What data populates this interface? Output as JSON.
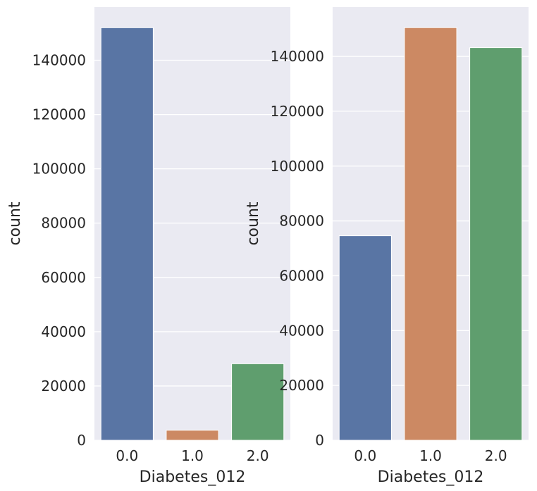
{
  "chart_data": [
    {
      "type": "bar",
      "categories": [
        "0.0",
        "1.0",
        "2.0"
      ],
      "values": [
        152000,
        3700,
        28200
      ],
      "colors": [
        "#5975a4",
        "#cc8963",
        "#5f9e6e"
      ],
      "xlabel": "Diabetes_012",
      "ylabel": "count",
      "ylim": [
        0,
        159600
      ],
      "yticks": [
        0,
        20000,
        40000,
        60000,
        80000,
        100000,
        120000,
        140000
      ],
      "ytick_labels": [
        "0",
        "20000",
        "40000",
        "60000",
        "80000",
        "100000",
        "120000",
        "140000"
      ],
      "grid": true,
      "background": "#eaeaf2"
    },
    {
      "type": "bar",
      "categories": [
        "0.0",
        "1.0",
        "2.0"
      ],
      "values": [
        74600,
        150500,
        143200
      ],
      "colors": [
        "#5975a4",
        "#cc8963",
        "#5f9e6e"
      ],
      "xlabel": "Diabetes_012",
      "ylabel": "count",
      "ylim": [
        0,
        158000
      ],
      "yticks": [
        0,
        20000,
        40000,
        60000,
        80000,
        100000,
        120000,
        140000
      ],
      "ytick_labels": [
        "0",
        "20000",
        "40000",
        "60000",
        "80000",
        "100000",
        "120000",
        "140000"
      ],
      "grid": true,
      "background": "#eaeaf2"
    }
  ]
}
